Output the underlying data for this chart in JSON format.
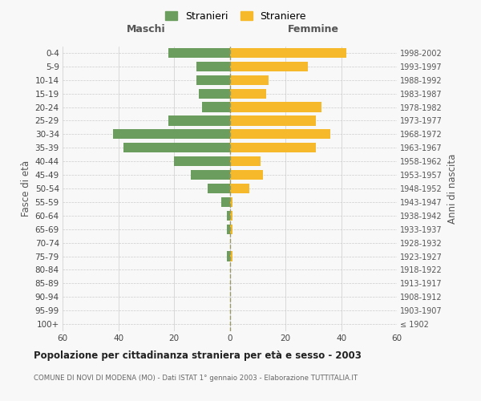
{
  "age_groups": [
    "100+",
    "95-99",
    "90-94",
    "85-89",
    "80-84",
    "75-79",
    "70-74",
    "65-69",
    "60-64",
    "55-59",
    "50-54",
    "45-49",
    "40-44",
    "35-39",
    "30-34",
    "25-29",
    "20-24",
    "15-19",
    "10-14",
    "5-9",
    "0-4"
  ],
  "birth_years": [
    "≤ 1902",
    "1903-1907",
    "1908-1912",
    "1913-1917",
    "1918-1922",
    "1923-1927",
    "1928-1932",
    "1933-1937",
    "1938-1942",
    "1943-1947",
    "1948-1952",
    "1953-1957",
    "1958-1962",
    "1963-1967",
    "1968-1972",
    "1973-1977",
    "1978-1982",
    "1983-1987",
    "1988-1992",
    "1993-1997",
    "1998-2002"
  ],
  "maschi": [
    0,
    0,
    0,
    0,
    0,
    1,
    0,
    1,
    1,
    3,
    8,
    14,
    20,
    38,
    42,
    22,
    10,
    11,
    12,
    12,
    22
  ],
  "femmine": [
    0,
    0,
    0,
    0,
    0,
    1,
    0,
    1,
    1,
    1,
    7,
    12,
    11,
    31,
    36,
    31,
    33,
    13,
    14,
    28,
    42
  ],
  "maschi_color": "#6b9e5e",
  "femmine_color": "#f6b92b",
  "background_color": "#f8f8f8",
  "grid_color": "#cccccc",
  "vline_color": "#999966",
  "title": "Popolazione per cittadinanza straniera per età e sesso - 2003",
  "subtitle": "COMUNE DI NOVI DI MODENA (MO) - Dati ISTAT 1° gennaio 2003 - Elaborazione TUTTITALIA.IT",
  "ylabel_left": "Fasce di età",
  "ylabel_right": "Anni di nascita",
  "header_maschi": "Maschi",
  "header_femmine": "Femmine",
  "legend_maschi": "Stranieri",
  "legend_femmine": "Straniere",
  "xlim": 60,
  "bar_height": 0.72
}
